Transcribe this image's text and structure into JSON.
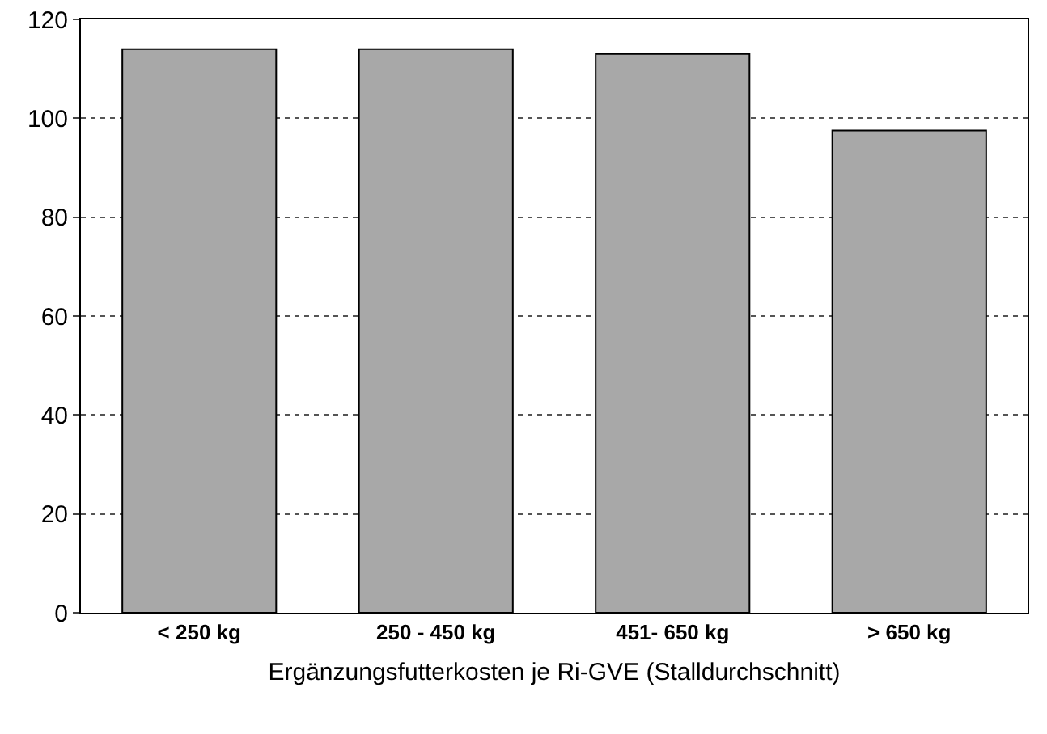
{
  "chart_data": {
    "type": "bar",
    "xlabel": "Ergänzungsfutterkosten je Ri-GVE (Stalldurchschnitt)",
    "categories": [
      "< 250 kg",
      "250 - 450 kg",
      "451- 650 kg",
      "> 650 kg"
    ],
    "values": [
      114,
      114,
      113,
      97.5
    ],
    "color": "#a8a8a8",
    "ylim": [
      0,
      120
    ],
    "yticks": [
      0,
      20,
      40,
      60,
      80,
      100,
      120
    ],
    "grid": "y"
  }
}
